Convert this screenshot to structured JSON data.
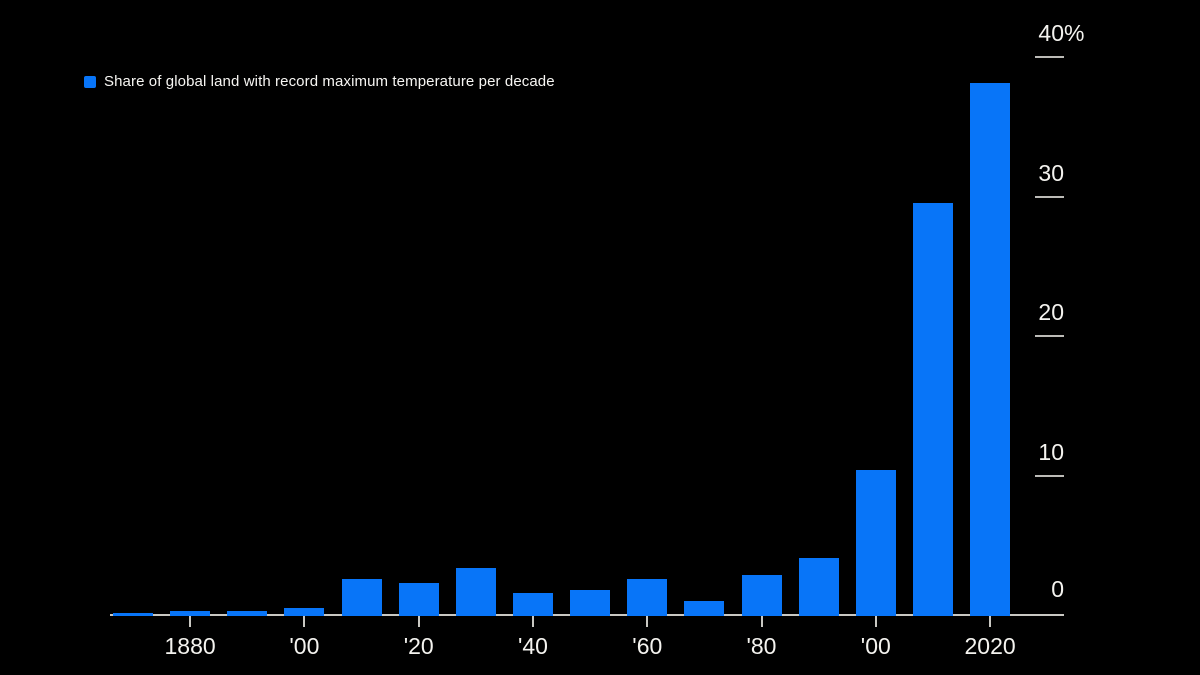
{
  "colors": {
    "background": "#000000",
    "bar_blue": "#0875F8",
    "axis_line": "#C9C8C3",
    "tick_line": "#BCBBB7",
    "label_text": "#F4F3EF"
  },
  "legend": {
    "marker": "blue-square",
    "label": "Share of global land with record maximum temperature per decade"
  },
  "chart_data": {
    "type": "bar",
    "title": "",
    "xlabel": "",
    "ylabel": "",
    "series_name": "Share of global land with record maximum temperature per decade",
    "categories": [
      "1870s",
      "1880s",
      "1890s",
      "1900s",
      "1910s",
      "1920s",
      "1930s",
      "1940s",
      "1950s",
      "1960s",
      "1970s",
      "1980s",
      "1990s",
      "2000s",
      "2010s",
      "2020s"
    ],
    "values": [
      0.1,
      0.2,
      0.2,
      0.4,
      2.5,
      2.2,
      3.3,
      1.5,
      1.7,
      2.5,
      0.9,
      2.8,
      4.0,
      10.3,
      29.4,
      38.0
    ],
    "unit": "%",
    "ylim": [
      0,
      40
    ],
    "grid": "off",
    "legend_position": "top-left",
    "axis_side": "right",
    "x_ticks": [
      {
        "label": "1880",
        "category_index": 1
      },
      {
        "label": "'00",
        "category_index": 3
      },
      {
        "label": "'20",
        "category_index": 5
      },
      {
        "label": "'40",
        "category_index": 7
      },
      {
        "label": "'60",
        "category_index": 9
      },
      {
        "label": "'80",
        "category_index": 11
      },
      {
        "label": "'00",
        "category_index": 13
      },
      {
        "label": "2020",
        "category_index": 15
      }
    ],
    "y_ticks": [
      {
        "value": 0,
        "label": "0",
        "suffix": ""
      },
      {
        "value": 10,
        "label": "10",
        "suffix": ""
      },
      {
        "value": 20,
        "label": "20",
        "suffix": ""
      },
      {
        "value": 30,
        "label": "30",
        "suffix": ""
      },
      {
        "value": 40,
        "label": "40",
        "suffix": "%"
      }
    ]
  }
}
